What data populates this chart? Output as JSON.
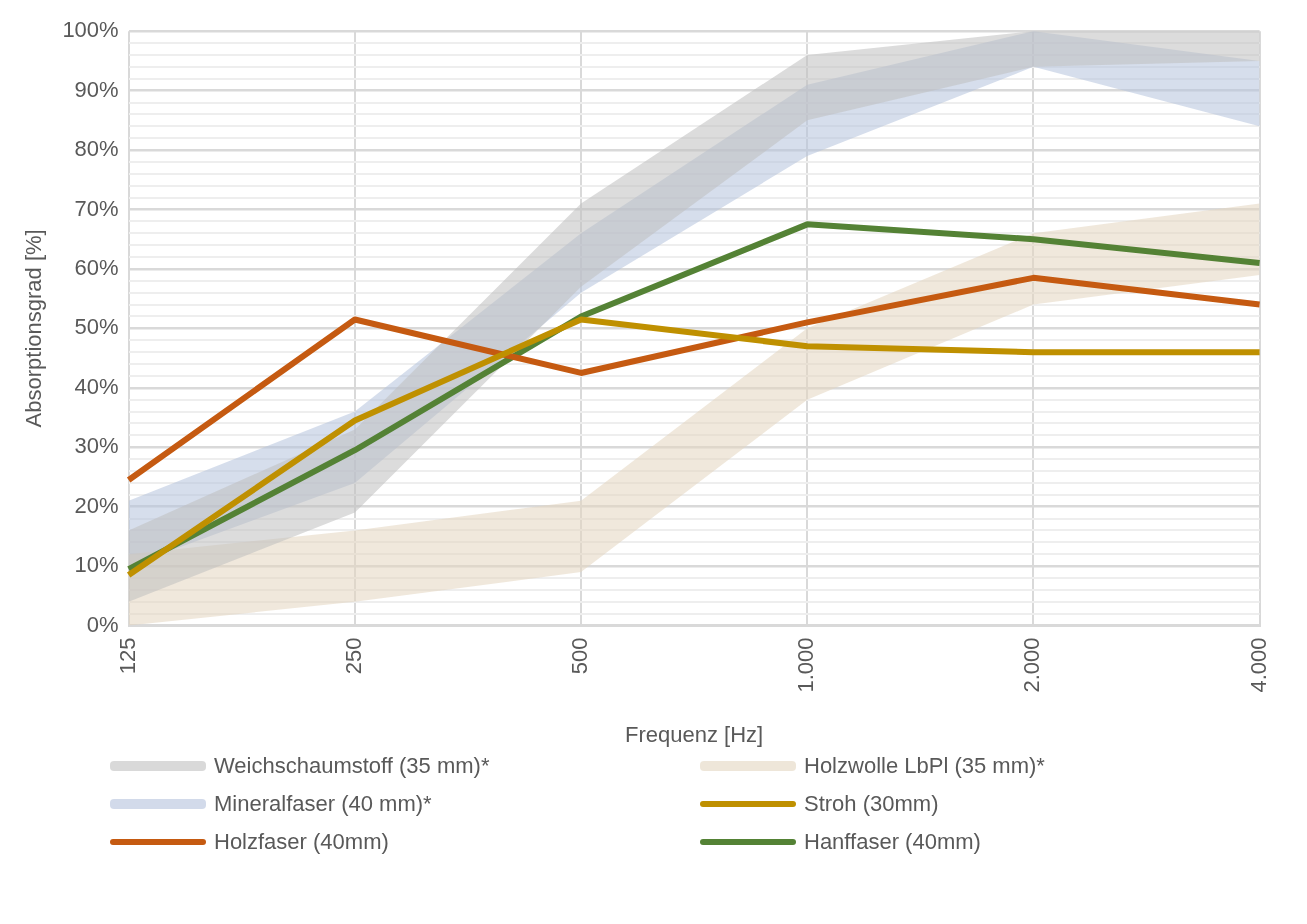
{
  "chart_data": {
    "type": "line",
    "xlabel": "Frequenz [Hz]",
    "ylabel": "Absorptionsgrad [%]",
    "categories": [
      "125",
      "250",
      "500",
      "1.000",
      "2.000",
      "4.000"
    ],
    "series": [
      {
        "name": "Weichschaumstoff (35 mm)*",
        "color": "#bfbfbf",
        "values": [
          null,
          null,
          null,
          null,
          null,
          null
        ],
        "lower": [
          4,
          19,
          57,
          85,
          94,
          95
        ],
        "upper": [
          16,
          33,
          71,
          96,
          100,
          100
        ]
      },
      {
        "name": "Holzwolle LbPl (35 mm)*",
        "color": "#e3d6bf",
        "values": [
          null,
          null,
          null,
          null,
          null,
          null
        ],
        "lower": [
          0,
          4,
          9,
          38,
          54,
          59
        ],
        "upper": [
          12,
          16,
          21,
          50,
          66,
          71
        ]
      },
      {
        "name": "Mineralfaser (40 mm)*",
        "color": "#b4c2dc",
        "values": [
          null,
          null,
          null,
          null,
          null,
          null
        ],
        "lower": [
          10,
          24,
          56,
          79,
          94,
          84
        ],
        "upper": [
          21,
          36,
          66,
          91,
          100,
          95
        ]
      },
      {
        "name": "Stroh (30mm)",
        "color": "#bf9000",
        "values": [
          8.5,
          34.5,
          51.5,
          47,
          46,
          46
        ]
      },
      {
        "name": "Holzfaser (40mm)",
        "color": "#c55a11",
        "values": [
          24.5,
          51.5,
          42.5,
          51,
          58.5,
          54
        ]
      },
      {
        "name": "Hanffaser (40mm)",
        "color": "#548235",
        "values": [
          9.5,
          29.5,
          52,
          67.5,
          65,
          61
        ]
      }
    ],
    "ylim": [
      0,
      100
    ],
    "yticks": [
      {
        "value": 0,
        "label": "0%"
      },
      {
        "value": 2,
        "label": null
      },
      {
        "value": 4,
        "label": null
      },
      {
        "value": 6,
        "label": null
      },
      {
        "value": 8,
        "label": null
      },
      {
        "value": 10,
        "label": "10%"
      },
      {
        "value": 12,
        "label": null
      },
      {
        "value": 14,
        "label": null
      },
      {
        "value": 16,
        "label": null
      },
      {
        "value": 18,
        "label": null
      },
      {
        "value": 20,
        "label": "20%"
      },
      {
        "value": 22,
        "label": null
      },
      {
        "value": 24,
        "label": null
      },
      {
        "value": 26,
        "label": null
      },
      {
        "value": 28,
        "label": null
      },
      {
        "value": 30,
        "label": "30%"
      },
      {
        "value": 32,
        "label": null
      },
      {
        "value": 34,
        "label": null
      },
      {
        "value": 36,
        "label": null
      },
      {
        "value": 38,
        "label": null
      },
      {
        "value": 40,
        "label": "40%"
      },
      {
        "value": 42,
        "label": null
      },
      {
        "value": 44,
        "label": null
      },
      {
        "value": 46,
        "label": null
      },
      {
        "value": 48,
        "label": null
      },
      {
        "value": 50,
        "label": "50%"
      },
      {
        "value": 52,
        "label": null
      },
      {
        "value": 54,
        "label": null
      },
      {
        "value": 56,
        "label": null
      },
      {
        "value": 58,
        "label": null
      },
      {
        "value": 60,
        "label": "60%"
      },
      {
        "value": 62,
        "label": null
      },
      {
        "value": 64,
        "label": null
      },
      {
        "value": 66,
        "label": null
      },
      {
        "value": 68,
        "label": null
      },
      {
        "value": 70,
        "label": "70%"
      },
      {
        "value": 72,
        "label": null
      },
      {
        "value": 74,
        "label": null
      },
      {
        "value": 76,
        "label": null
      },
      {
        "value": 78,
        "label": null
      },
      {
        "value": 80,
        "label": "80%"
      },
      {
        "value": 82,
        "label": null
      },
      {
        "value": 84,
        "label": null
      },
      {
        "value": 86,
        "label": null
      },
      {
        "value": 88,
        "label": null
      },
      {
        "value": 90,
        "label": "90%"
      },
      {
        "value": 92,
        "label": null
      },
      {
        "value": 94,
        "label": null
      },
      {
        "value": 96,
        "label": null
      },
      {
        "value": 98,
        "label": null
      },
      {
        "value": 100,
        "label": "100%"
      }
    ],
    "grid": true,
    "legend": "bottom",
    "marker": "none",
    "line_style": "solid"
  }
}
